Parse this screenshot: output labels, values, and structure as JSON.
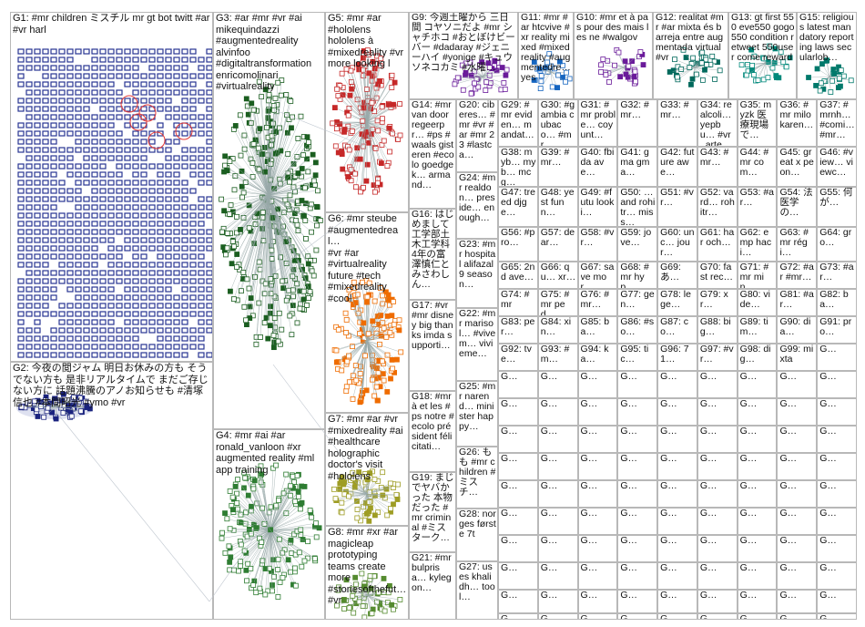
{
  "groups": [
    {
      "id": "G1",
      "label": "G1: #mr children ミスチル mr gt bot twitt #ar #vr harl",
      "color": "#1a237e"
    },
    {
      "id": "G2",
      "label": "G2: 今夜の閲ジャム 明日お休みの方も そうでない方も 是非リアルタイムで まだご存じない方に 話題沸騰のアノお知らせも #清塚信也 #本間昭光 #ymo #vr",
      "color": "#1a237e"
    },
    {
      "id": "G3",
      "label": "G3: #ar #mr #vr #ai\nmikequindazzi\n#augmentedreality\nalvinfoo\n#digitaltransformation\nenricomolinari\n#virtualreality",
      "color": "#1b5e20"
    },
    {
      "id": "G4",
      "label": "G4: #mr #ai #ar\nronald_vanloon #xr\naugmented reality #ml\napp training",
      "color": "#1b5e20"
    },
    {
      "id": "G5",
      "label": "G5: #mr #ar\n#hololens\nhololens à\n#mixedreality #vr\nmore looking l",
      "color": "#b71c1c"
    },
    {
      "id": "G6",
      "label": "G6: #mr steube\n#augmentedreal…\n#vr #ar\n#virtualreality\nfuture #tech\n#mixedreality\n#cool",
      "color": "#e65100"
    },
    {
      "id": "G7",
      "label": "G7: #mr #ar #vr\n#mixedreality #ai\n#healthcare\nholographic\ndoctor's visit\n#hololens",
      "color": "#827717"
    },
    {
      "id": "G8",
      "label": "G8: #mr #xr #ar\nmagicleap\nprototyping\nteams create\nmore\n#storiesofthefut…\n#vr",
      "color": "#33691e"
    },
    {
      "id": "G9",
      "label": "G9: 今週土曜から 三日間 コヤソニだよ #mr シャチホコ #おとぼけビーバー #dadaray #ジェニーハイ #yonige #キュウソネコカミ #水曜…",
      "color": "#4a148c"
    },
    {
      "id": "G10",
      "label": "G10: #mr et à pas pour des mais les ne #walgov",
      "color": "#4a148c"
    },
    {
      "id": "G11",
      "label": "G11: #mr #ar htcvive #xr reality mixed #mixedreality #augmentedre… yes",
      "color": "#1565c0"
    },
    {
      "id": "G12",
      "label": "G12: realitat #mr #ar mixta és barreja entre augmentada virtual #vr",
      "color": "#00695c"
    },
    {
      "id": "G13",
      "label": "G13: gt first 550 eve550 gogo 550 condition retweet 550user come reward",
      "color": "#00695c"
    },
    {
      "id": "G14",
      "label": "G14: #mr van door regeerpr… #ps #waals gisteren #ecolo goedgek… armand…",
      "color": "#006064"
    },
    {
      "id": "G15",
      "label": "G15: religious latest mandatory reporting laws secularlob…",
      "color": "#00695c"
    },
    {
      "id": "G16",
      "label": "G16: はじめまして 工学部土木工学科4年の富澤慎仁とみさわしん…",
      "color": "#4e342e"
    },
    {
      "id": "G17",
      "label": "G17: #vr #mr disney big thanks imda supporti…",
      "color": "#4e342e"
    },
    {
      "id": "G18",
      "label": "G18: #mr à et les #ps notre #ecolo président félicitati…",
      "color": "#4e342e"
    },
    {
      "id": "G19",
      "label": "G19: まじでヤバかった 本物だった #mr criminal #ミスターク…",
      "color": "#4e342e"
    },
    {
      "id": "G20",
      "label": "G20: ciberes… #mr #vr #ar #mr 23 #lastca…",
      "color": "#4e342e"
    },
    {
      "id": "G21",
      "label": "G21: #mr bulprisa… kylegon…",
      "color": "#4e342e"
    },
    {
      "id": "G22",
      "label": "G22: #mr marisol… #vivem… vivieme…",
      "color": "#4e342e"
    },
    {
      "id": "G23",
      "label": "G23: #mr hospital alifazal9 season…",
      "color": "#4e342e"
    },
    {
      "id": "G24",
      "label": "G24: #mr realdon… preside… enough…",
      "color": "#4e342e"
    },
    {
      "id": "G25",
      "label": "G25: #mr narend… minister happy…",
      "color": "#4e342e"
    },
    {
      "id": "G26",
      "label": "G26: もも #mr children #ミスチ…",
      "color": "#4e342e"
    },
    {
      "id": "G27",
      "label": "G27: uses khalidh… tool…",
      "color": "#4e342e"
    }
  ],
  "small_group_labels": [
    "G28: norges første 7t",
    "G29: #mr eviden… mandat…",
    "G30: #gambia cubaco… #mr…",
    "G31: #mr proble… coyunt…",
    "G32: #mr…",
    "G33: #mr…",
    "G34: realcoli… yepbu… #vr_arte…",
    "G35: myzk 医療現場で…",
    "G36: #mr milo karen…",
    "G37: #mrnh… #comi… #mr…",
    "G38: myb… myb… mcg…",
    "G39: #mr…",
    "G40: fbida ave…",
    "G41: gma gma…",
    "G42: future awe…",
    "G43: #mr…",
    "G44: #mr com…",
    "G45: great x peon…",
    "G46: #view… viewc…",
    "G47: treed djge…",
    "G48: yest funn…",
    "G49: #futu looki…",
    "G50: …and rohitr… miss…",
    "G51: #vr…",
    "G52: vard… rohitr…",
    "G53: #ar…",
    "G54: 法医学の…",
    "G55: 何が…",
    "G56: #pro…",
    "G57: dear…",
    "G58: #vr…",
    "G59: jove…",
    "G60: unc… jour…",
    "G61: har och…",
    "G62: emp haci…",
    "G63: #mr régi…",
    "G64: gro…",
    "G65: 2nd ave…",
    "G66: qu… xr…",
    "G67: save mor…",
    "G68: #mr hyp…",
    "G69: あ…",
    "G70: fast rec…",
    "G71: #mr min…",
    "G72: #ar #mr…",
    "G73: #ar…",
    "G74: #mr",
    "G75: #mr ped…",
    "G76: #mr…",
    "G77: gen…",
    "G78: lege…",
    "G79: xr…",
    "G80: vide…",
    "G81: #ar…",
    "G82: ba…",
    "G83: per…",
    "G84: xin…",
    "G85: ba…",
    "G86: #so…",
    "G87: co…",
    "G88: big…",
    "G89: tim…",
    "G90: dia…",
    "G91: pro…",
    "G92: tve…",
    "G93: #m…",
    "G94: ka…",
    "G95: tic…",
    "G96: 71…",
    "G97: #vr…",
    "G98: dig…",
    "G99: mixta"
  ],
  "labels_ui": {
    "g1_items": "G1: #mr children ミスチル mr gt bot twitt #ar #vr harl"
  }
}
